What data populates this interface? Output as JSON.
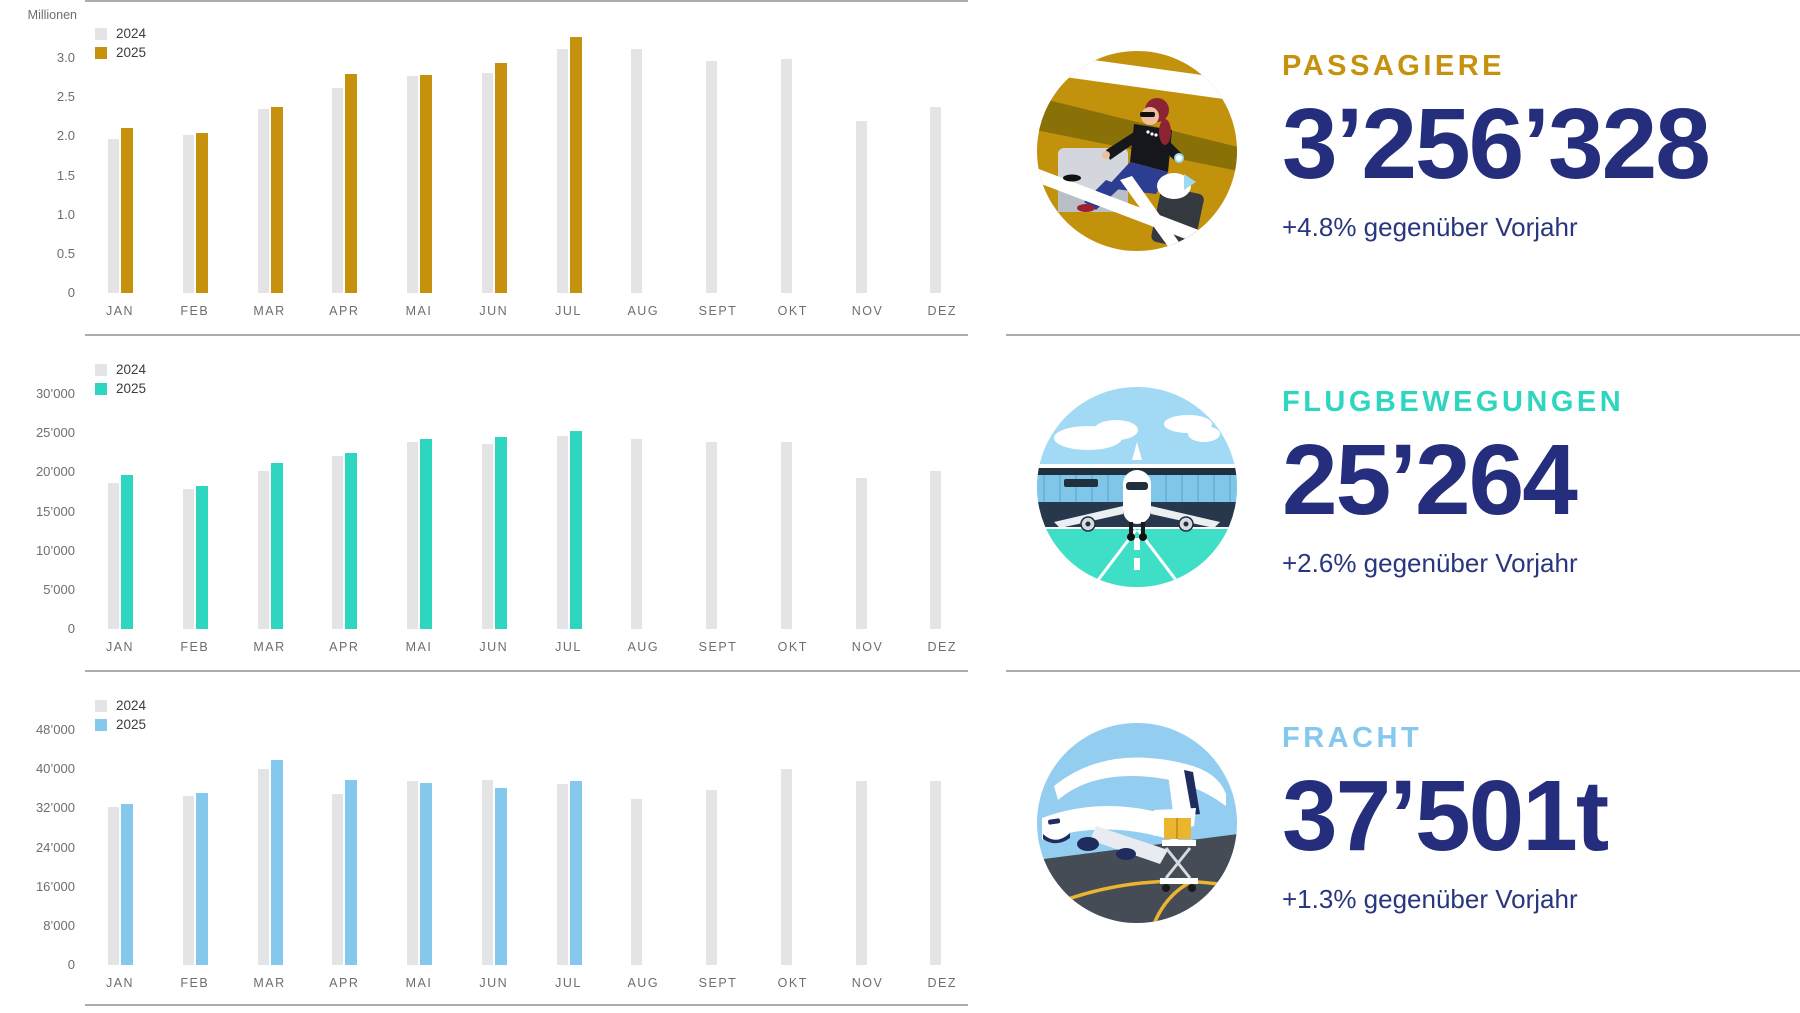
{
  "colors": {
    "navy": "#252e7d",
    "bar_2024": "#e4e4e7",
    "gold": "#c6920e",
    "teal": "#2fd6bf",
    "light_blue": "#85c8ee",
    "axis_text": "#6e6e6e",
    "divider": "#acacac"
  },
  "chart_data": [
    {
      "type": "bar",
      "id": "passengers",
      "unit_label": "Millionen",
      "categories": [
        "JAN",
        "FEB",
        "MAR",
        "APR",
        "MAI",
        "JUN",
        "JUL",
        "AUG",
        "SEPT",
        "OKT",
        "NOV",
        "DEZ"
      ],
      "y_tick_labels": [
        "3.0",
        "2.5",
        "2.0",
        "1.5",
        "1.0",
        "0.5",
        "0"
      ],
      "y_tick_values": [
        3.0,
        2.5,
        2.0,
        1.5,
        1.0,
        0.5,
        0
      ],
      "ylim": [
        0,
        3.3
      ],
      "grid": false,
      "legend_position": "top-left",
      "series": [
        {
          "name": "2024",
          "color": "#e4e4e7",
          "values": [
            1.96,
            2.02,
            2.35,
            2.62,
            2.77,
            2.81,
            3.11,
            3.11,
            2.96,
            2.98,
            2.19,
            2.37
          ]
        },
        {
          "name": "2025",
          "color": "#c6920e",
          "values": [
            2.1,
            2.04,
            2.37,
            2.79,
            2.78,
            2.94,
            3.26,
            null,
            null,
            null,
            null,
            null
          ]
        }
      ]
    },
    {
      "type": "bar",
      "id": "flight-movements",
      "unit_label": "",
      "categories": [
        "JAN",
        "FEB",
        "MAR",
        "APR",
        "MAI",
        "JUN",
        "JUL",
        "AUG",
        "SEPT",
        "OKT",
        "NOV",
        "DEZ"
      ],
      "y_tick_labels": [
        "30’000",
        "25’000",
        "20’000",
        "15’000",
        "10’000",
        "5’000",
        "0"
      ],
      "y_tick_values": [
        30000,
        25000,
        20000,
        15000,
        10000,
        5000,
        0
      ],
      "ylim": [
        0,
        30000
      ],
      "grid": false,
      "legend_position": "top-left",
      "series": [
        {
          "name": "2024",
          "color": "#e4e4e7",
          "values": [
            18600,
            17900,
            20200,
            22100,
            23900,
            23600,
            24600,
            24200,
            23900,
            23900,
            19200,
            20100
          ]
        },
        {
          "name": "2025",
          "color": "#2fd6bf",
          "values": [
            19700,
            18200,
            21200,
            22400,
            24200,
            24500,
            25264,
            null,
            null,
            null,
            null,
            null
          ]
        }
      ]
    },
    {
      "type": "bar",
      "id": "freight",
      "unit_label": "",
      "categories": [
        "JAN",
        "FEB",
        "MAR",
        "APR",
        "MAI",
        "JUN",
        "JUL",
        "AUG",
        "SEPT",
        "OKT",
        "NOV",
        "DEZ"
      ],
      "y_tick_labels": [
        "48’000",
        "40’000",
        "32’000",
        "24’000",
        "16’000",
        "8’000",
        "0"
      ],
      "y_tick_values": [
        48000,
        40000,
        32000,
        24000,
        16000,
        8000,
        0
      ],
      "ylim": [
        0,
        48000
      ],
      "grid": false,
      "legend_position": "top-left",
      "series": [
        {
          "name": "2024",
          "color": "#e4e4e7",
          "values": [
            32200,
            34400,
            40000,
            34900,
            37600,
            37700,
            37000,
            33800,
            35700,
            40000,
            37600,
            37600
          ]
        },
        {
          "name": "2025",
          "color": "#85c8ee",
          "values": [
            32900,
            35100,
            41800,
            37700,
            37200,
            36100,
            37501,
            null,
            null,
            null,
            null,
            null
          ]
        }
      ]
    }
  ],
  "stats": [
    {
      "id": "passengers",
      "title": "PASSAGIERE",
      "title_color": "#c6920e",
      "value": "3’256’328",
      "delta": "+4.8% gegenüber Vorjahr",
      "icon": "passenger-lounge-illustration"
    },
    {
      "id": "flight-movements",
      "title": "FLUGBEWEGUNGEN",
      "title_color": "#2fd6bf",
      "value": "25’264",
      "delta": "+2.6% gegenüber Vorjahr",
      "icon": "aircraft-runway-illustration"
    },
    {
      "id": "freight",
      "title": "FRACHT",
      "title_color": "#85c8ee",
      "value": "37’501t",
      "delta": "+1.3% gegenüber Vorjahr",
      "icon": "cargo-aircraft-illustration"
    }
  ]
}
